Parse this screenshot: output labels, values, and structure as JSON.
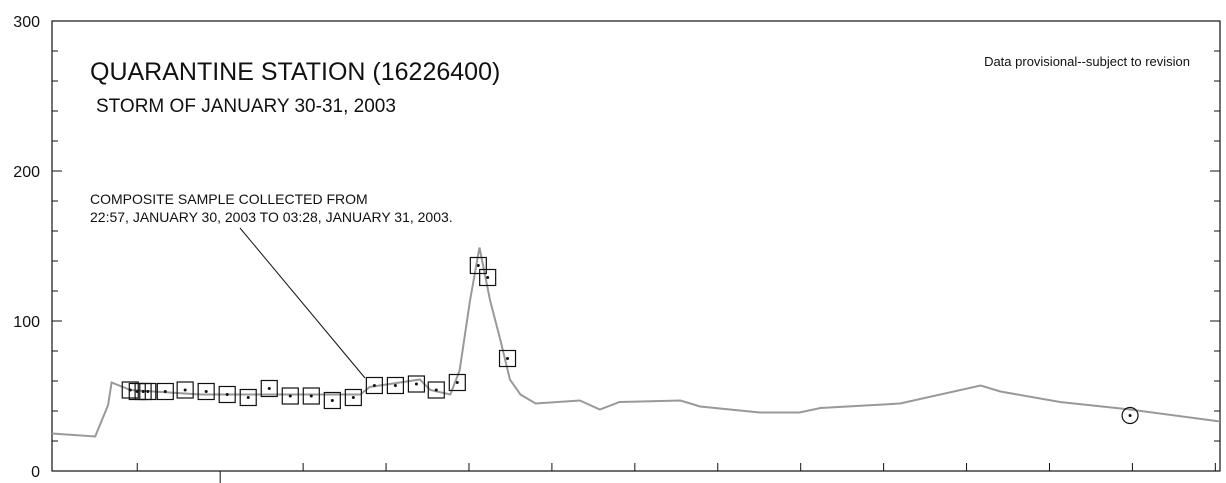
{
  "chart_data": {
    "type": "line",
    "title": "QUARANTINE STATION (16226400)",
    "subtitle": "STORM OF JANUARY 30-31, 2003",
    "note": "Data provisional--subject to revision",
    "annotation": [
      "COMPOSITE SAMPLE COLLECTED FROM",
      "22:57, JANUARY 30, 2003 TO 03:28, JANUARY 31, 2003."
    ],
    "xlim": [
      0,
      100
    ],
    "ylim": [
      0,
      300
    ],
    "yticks": [
      0,
      100,
      200,
      300
    ],
    "minor_yticks": [
      20,
      40,
      60,
      80,
      120,
      140,
      160,
      180,
      220,
      240,
      260,
      280
    ],
    "xticks": [
      7.3,
      14.4,
      21.5,
      28.6,
      35.7,
      42.8,
      49.9,
      57.0,
      64.1,
      71.2,
      78.3,
      85.4,
      92.5,
      99.6
    ],
    "series": [
      {
        "color": "#999999",
        "x": [
          0,
          3.7,
          4.8,
          5.1,
          6.7,
          12.7,
          26.4,
          27.2,
          31.5,
          32.4,
          34.1,
          34.9,
          35.8,
          36.6,
          37.5,
          38.4,
          39.2,
          40.1,
          41.4,
          45.2,
          46.9,
          48.6,
          53.8,
          55.5,
          60.6,
          64.0,
          65.8,
          72.6,
          79.5,
          81.2,
          86.3,
          92.3,
          100
        ],
        "values": [
          25,
          23,
          44,
          59,
          54,
          51,
          51,
          56,
          61,
          54,
          51,
          67,
          114,
          149,
          114,
          87,
          61,
          51,
          45,
          47,
          41,
          46,
          47,
          43,
          39,
          39,
          42,
          45,
          57,
          53,
          46,
          41,
          33
        ]
      },
      {
        "type": "scatter",
        "marker": "square",
        "color": "#111111",
        "x": [
          6.7,
          7.3,
          7.8,
          8.2,
          9.7,
          11.4,
          13.2,
          15.0,
          16.8,
          18.6,
          20.4,
          22.2,
          24.0,
          25.8,
          27.6,
          29.4,
          31.2,
          32.9,
          34.7,
          36.5,
          37.3,
          39.0
        ],
        "values": [
          54,
          53,
          53,
          53,
          53,
          54,
          53,
          51,
          49,
          55,
          50,
          50,
          47,
          49,
          57,
          57,
          58,
          54,
          59,
          137,
          129,
          75
        ]
      },
      {
        "type": "scatter",
        "marker": "circle",
        "color": "#111111",
        "x": [
          92.3
        ],
        "values": [
          37
        ]
      }
    ]
  }
}
